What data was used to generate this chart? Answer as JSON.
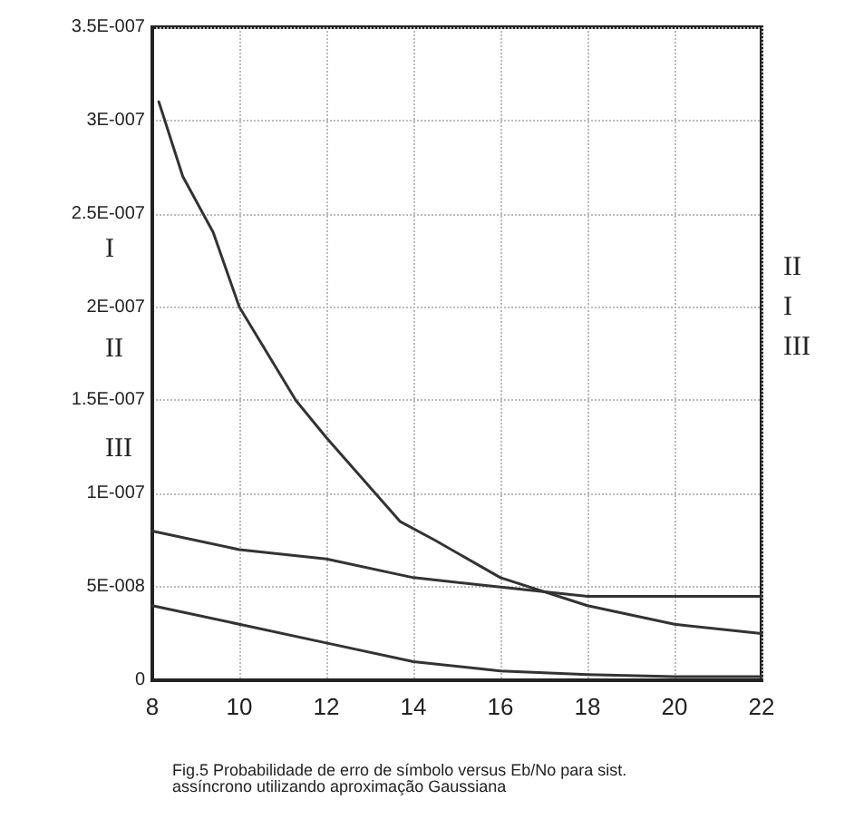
{
  "chart_data": {
    "type": "line",
    "annotations": [
      "I",
      "II",
      "III",
      "II",
      "I",
      "III",
      "Fig.5 Probabilidade de erro de símbolo versus Eb/No para sist. assíncrono utilizando aproximação Gaussiana"
    ],
    "series": [
      {
        "color": "#333333",
        "x": [
          8.15,
          8.7,
          9.4,
          10,
          11.3,
          12,
          13.7,
          14.5,
          16,
          18,
          20,
          22
        ],
        "values": [
          3.1e-07,
          2.7e-07,
          2.4e-07,
          2e-07,
          1.5e-07,
          1.3e-07,
          8.5e-08,
          7.5e-08,
          5.5e-08,
          4e-08,
          3e-08,
          2.5e-08
        ]
      },
      {
        "color": "#333333",
        "x": [
          8,
          10,
          12,
          14,
          16,
          18,
          20,
          22
        ],
        "values": [
          8e-08,
          7e-08,
          6.5e-08,
          5.5e-08,
          5e-08,
          4.5e-08,
          4.5e-08,
          4.5e-08
        ]
      },
      {
        "color": "#333333",
        "x": [
          8,
          10,
          12,
          14,
          16,
          18,
          20,
          22
        ],
        "values": [
          4e-08,
          3e-08,
          2e-08,
          1e-08,
          5e-09,
          3e-09,
          2e-09,
          2e-09
        ]
      }
    ],
    "xlim": [
      8,
      22
    ],
    "xticks": [
      8,
      10,
      12,
      14,
      16,
      18,
      20,
      22
    ],
    "ylim": [
      0,
      3.5e-07
    ],
    "yticks": [
      0,
      {
        "value": 5e-08,
        "label": "5E-008"
      },
      {
        "value": 1e-07,
        "label": "1E-007"
      },
      {
        "value": 1.5e-07,
        "label": "1.5E-007"
      },
      {
        "value": 2e-07,
        "label": "2E-007"
      },
      {
        "value": 2.5e-07,
        "label": "2.5E-007"
      },
      {
        "value": 3e-07,
        "label": "3E-007"
      },
      {
        "value": 3.5e-07,
        "label": "3.5E-007"
      }
    ],
    "grid": true,
    "marker": "none",
    "line_style": "solid"
  }
}
